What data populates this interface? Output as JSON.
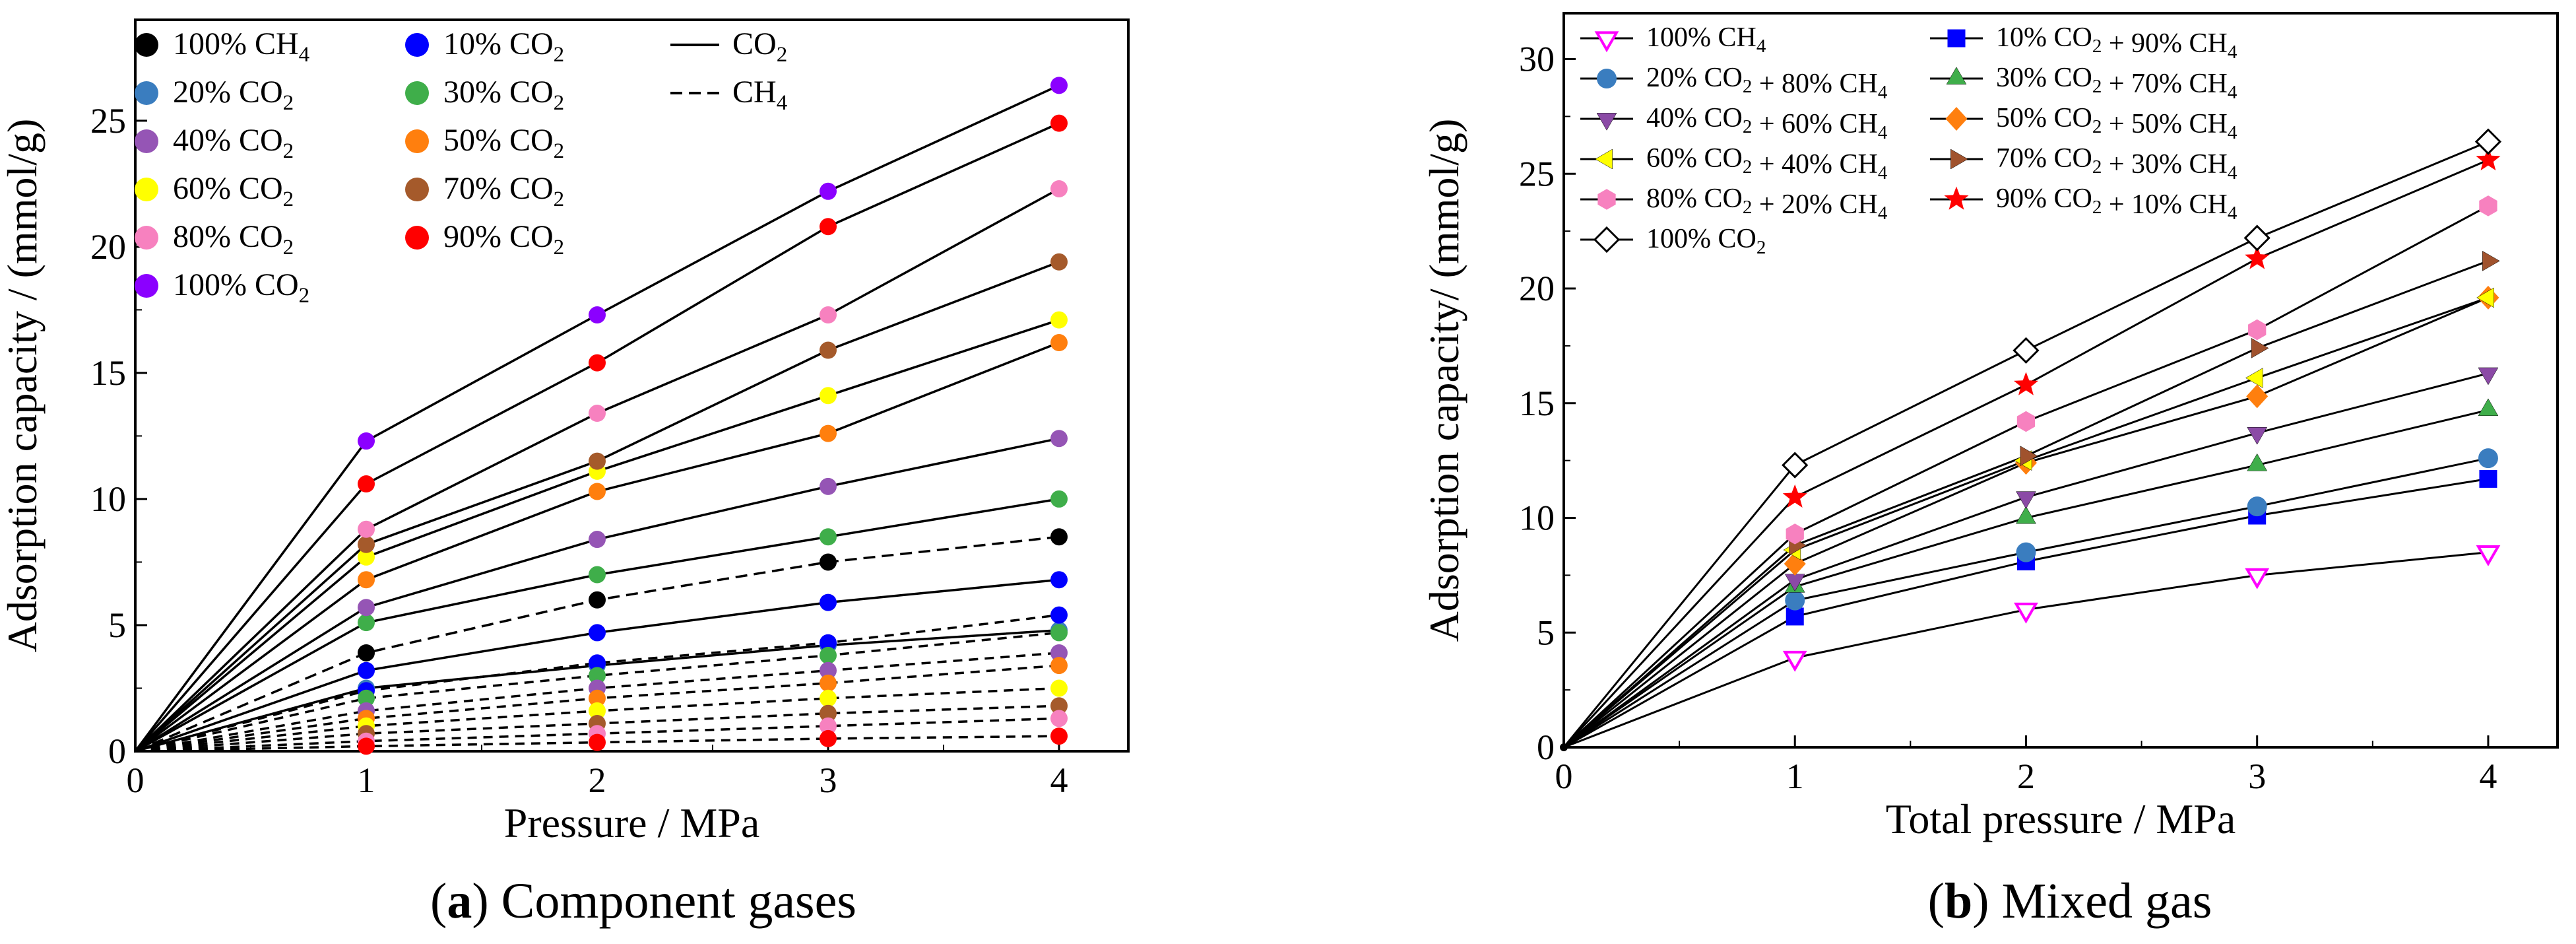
{
  "colors": {
    "ch4": "#000000",
    "co2_10": "#0000ff",
    "co2_20": "#3a7dbf",
    "co2_30": "#3fae4a",
    "co2_40": "#9555b5",
    "co2_50": "#ff7f0e",
    "co2_60": "#ffff00",
    "co2_70": "#a55a2b",
    "co2_80": "#f781bf",
    "co2_90": "#ff0000",
    "co2_100": "#8b00ff",
    "mix_ch4": "#ff00ff",
    "mix_10": "#0000ff",
    "mix_20": "#3a7dbf",
    "mix_30": "#3fae4a",
    "mix_40": "#8b4aa6",
    "mix_50": "#ff7f0e",
    "mix_60": "#ffff00",
    "mix_70": "#a0522d",
    "mix_80": "#f781bf",
    "mix_90": "#ff0000",
    "mix_100": "#000000"
  },
  "captions": {
    "a_letter": "a",
    "a_text": " Component gases",
    "b_letter": "b",
    "b_text": " Mixed gas"
  },
  "chart_data": [
    {
      "type": "line",
      "xlabel": "Pressure / MPa",
      "ylabel": "Adsorption capacity / (mmol/g)",
      "xlim": [
        0,
        4.3
      ],
      "ylim": [
        0,
        29
      ],
      "xticks": [
        0,
        1,
        2,
        3,
        4
      ],
      "yticks": [
        0,
        5,
        10,
        15,
        20,
        25
      ],
      "grid": false,
      "legend_position": "top-left",
      "x": [
        0,
        1,
        2,
        3,
        4
      ],
      "legend_style_entries": [
        {
          "label": "CO",
          "sub": "2",
          "style": "solid"
        },
        {
          "label": "CH",
          "sub": "4",
          "style": "dashed"
        }
      ],
      "series": [
        {
          "name": "100% CH",
          "sub": "4",
          "color_key": "ch4",
          "style": "dashed",
          "values": [
            0,
            3.9,
            6.0,
            7.5,
            8.5
          ]
        },
        {
          "name": "10% CO",
          "sub": "2",
          "color_key": "co2_10",
          "style": "solid",
          "values": [
            0,
            3.2,
            4.7,
            5.9,
            6.8
          ]
        },
        {
          "name": "20% CO",
          "sub": "2",
          "color_key": "co2_20",
          "style": "solid",
          "values": [
            0,
            2.5,
            3.4,
            4.2,
            4.8
          ]
        },
        {
          "name": "30% CO",
          "sub": "2",
          "color_key": "co2_30",
          "style": "solid",
          "values": [
            0,
            5.1,
            7.0,
            8.5,
            10.0
          ]
        },
        {
          "name": "40% CO",
          "sub": "2",
          "color_key": "co2_40",
          "style": "solid",
          "values": [
            0,
            5.7,
            8.4,
            10.5,
            12.4
          ]
        },
        {
          "name": "50% CO",
          "sub": "2",
          "color_key": "co2_50",
          "style": "solid",
          "values": [
            0,
            6.8,
            10.3,
            12.6,
            16.2
          ]
        },
        {
          "name": "60% CO",
          "sub": "2",
          "color_key": "co2_60",
          "style": "solid",
          "values": [
            0,
            7.7,
            11.1,
            14.1,
            17.1
          ]
        },
        {
          "name": "70% CO",
          "sub": "2",
          "color_key": "co2_70",
          "style": "solid",
          "values": [
            0,
            8.2,
            11.5,
            15.9,
            19.4
          ]
        },
        {
          "name": "80% CO",
          "sub": "2",
          "color_key": "co2_80",
          "style": "solid",
          "values": [
            0,
            8.8,
            13.4,
            17.3,
            22.3
          ]
        },
        {
          "name": "90% CO",
          "sub": "2",
          "color_key": "co2_90",
          "style": "solid",
          "values": [
            0,
            10.6,
            15.4,
            20.8,
            24.9
          ]
        },
        {
          "name": "100% CO",
          "sub": "2",
          "color_key": "co2_100",
          "style": "solid",
          "values": [
            0,
            12.3,
            17.3,
            22.2,
            26.4
          ]
        }
      ],
      "ch4_partial_series": [
        {
          "color_key": "co2_10",
          "values": [
            0,
            2.4,
            3.5,
            4.3,
            5.4
          ]
        },
        {
          "color_key": "co2_30",
          "values": [
            0,
            2.1,
            3.0,
            3.8,
            4.7
          ]
        },
        {
          "color_key": "co2_40",
          "values": [
            0,
            1.6,
            2.5,
            3.2,
            3.9
          ]
        },
        {
          "color_key": "co2_50",
          "values": [
            0,
            1.3,
            2.1,
            2.7,
            3.4
          ]
        },
        {
          "color_key": "co2_60",
          "values": [
            0,
            1.0,
            1.6,
            2.1,
            2.5
          ]
        },
        {
          "color_key": "co2_70",
          "values": [
            0,
            0.7,
            1.1,
            1.5,
            1.8
          ]
        },
        {
          "color_key": "co2_80",
          "values": [
            0,
            0.4,
            0.7,
            1.0,
            1.3
          ]
        },
        {
          "color_key": "co2_90",
          "values": [
            0,
            0.2,
            0.35,
            0.5,
            0.6
          ]
        }
      ]
    },
    {
      "type": "line",
      "xlabel": "Total pressure / MPa",
      "ylabel": "Adsorption capacity/ (mmol/g)",
      "xlim": [
        0,
        4.3
      ],
      "ylim": [
        0,
        32
      ],
      "xticks": [
        0,
        1,
        2,
        3,
        4
      ],
      "yticks": [
        0,
        5,
        10,
        15,
        20,
        25,
        30
      ],
      "grid": false,
      "legend_position": "top-left",
      "x": [
        0,
        1,
        2,
        3,
        4
      ],
      "series": [
        {
          "name_parts": [
            [
              "100% CH",
              "4"
            ]
          ],
          "color_key": "mix_ch4",
          "marker": "triangle-down-open",
          "values": [
            0,
            3.9,
            6.0,
            7.5,
            8.5
          ]
        },
        {
          "name_parts": [
            [
              "10% CO",
              "2"
            ],
            [
              " + 90% CH",
              "4"
            ]
          ],
          "color_key": "mix_10",
          "marker": "square",
          "values": [
            0,
            5.7,
            8.1,
            10.1,
            11.7
          ]
        },
        {
          "name_parts": [
            [
              "20% CO",
              "2"
            ],
            [
              " + 80% CH",
              "4"
            ]
          ],
          "color_key": "mix_20",
          "marker": "circle",
          "values": [
            0,
            6.4,
            8.5,
            10.5,
            12.6
          ]
        },
        {
          "name_parts": [
            [
              "30% CO",
              "2"
            ],
            [
              " + 70% CH",
              "4"
            ]
          ],
          "color_key": "mix_30",
          "marker": "triangle-up",
          "values": [
            0,
            7.0,
            10.0,
            12.3,
            14.7
          ]
        },
        {
          "name_parts": [
            [
              "40% CO",
              "2"
            ],
            [
              " + 60% CH",
              "4"
            ]
          ],
          "color_key": "mix_40",
          "marker": "triangle-down",
          "values": [
            0,
            7.3,
            10.9,
            13.7,
            16.3
          ]
        },
        {
          "name_parts": [
            [
              "50% CO",
              "2"
            ],
            [
              " + 50% CH",
              "4"
            ]
          ],
          "color_key": "mix_50",
          "marker": "diamond",
          "values": [
            0,
            8.0,
            12.4,
            15.3,
            19.6
          ]
        },
        {
          "name_parts": [
            [
              "60% CO",
              "2"
            ],
            [
              " + 40% CH",
              "4"
            ]
          ],
          "color_key": "mix_60",
          "marker": "triangle-left",
          "values": [
            0,
            8.6,
            12.5,
            16.1,
            19.6
          ]
        },
        {
          "name_parts": [
            [
              "70% CO",
              "2"
            ],
            [
              " + 30% CH",
              "4"
            ]
          ],
          "color_key": "mix_70",
          "marker": "triangle-right",
          "values": [
            0,
            8.8,
            12.7,
            17.4,
            21.2
          ]
        },
        {
          "name_parts": [
            [
              "80% CO",
              "2"
            ],
            [
              " + 20% CH",
              "4"
            ]
          ],
          "color_key": "mix_80",
          "marker": "hexagon",
          "values": [
            0,
            9.3,
            14.2,
            18.2,
            23.6
          ]
        },
        {
          "name_parts": [
            [
              "90% CO",
              "2"
            ],
            [
              " + 10% CH",
              "4"
            ]
          ],
          "color_key": "mix_90",
          "marker": "star",
          "values": [
            0,
            10.9,
            15.8,
            21.3,
            25.6
          ]
        },
        {
          "name_parts": [
            [
              "100% CO",
              "2"
            ]
          ],
          "color_key": "mix_100",
          "marker": "diamond-open",
          "values": [
            0,
            12.3,
            17.3,
            22.2,
            26.4
          ]
        }
      ]
    }
  ]
}
